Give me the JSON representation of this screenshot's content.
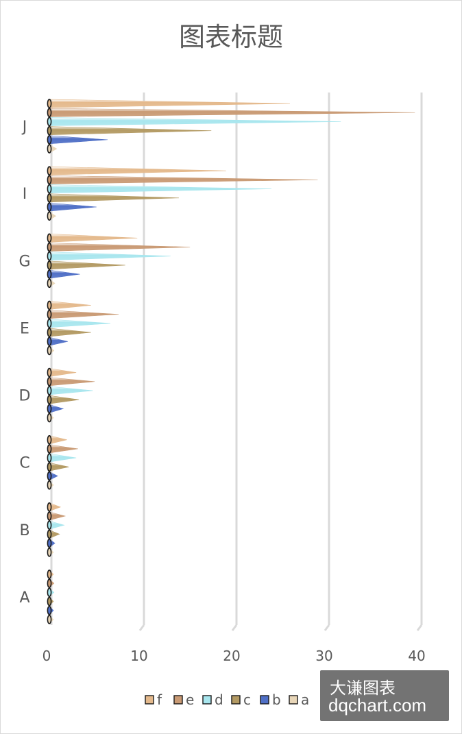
{
  "chart_data": {
    "type": "bar",
    "orientation": "horizontal",
    "bar_shape": "cone",
    "title": "图表标题",
    "categories": [
      "A",
      "B",
      "C",
      "D",
      "E",
      "G",
      "I",
      "J"
    ],
    "series": [
      {
        "name": "f",
        "values": [
          0.4,
          1.2,
          1.9,
          2.9,
          4.5,
          9.5,
          19.1,
          26.0
        ],
        "color": "#e4b98c"
      },
      {
        "name": "e",
        "values": [
          0.5,
          1.7,
          3.1,
          4.9,
          7.5,
          15.2,
          29.0,
          39.5
        ],
        "color": "#c99a74"
      },
      {
        "name": "d",
        "values": [
          0.5,
          1.6,
          2.9,
          4.7,
          6.6,
          13.1,
          24.0,
          31.5
        ],
        "color": "#a8e6ee"
      },
      {
        "name": "c",
        "values": [
          0.3,
          1.1,
          2.1,
          3.2,
          4.5,
          8.2,
          14.0,
          17.5
        ],
        "color": "#b39a63"
      },
      {
        "name": "b",
        "values": [
          0.2,
          0.6,
          0.9,
          1.5,
          2.0,
          3.3,
          5.1,
          6.3
        ],
        "color": "#4f6fc6"
      },
      {
        "name": "a",
        "values": [
          0.1,
          0.2,
          0.3,
          0.4,
          0.5,
          0.6,
          0.7,
          0.8
        ],
        "color": "#e8d6b8"
      }
    ],
    "xlim": [
      0,
      40
    ],
    "xticks": [
      0,
      10,
      20,
      30,
      40
    ],
    "grid": true,
    "legend_position": "bottom"
  },
  "watermark": {
    "line1": "大谦图表",
    "line2": "dqchart.com"
  }
}
